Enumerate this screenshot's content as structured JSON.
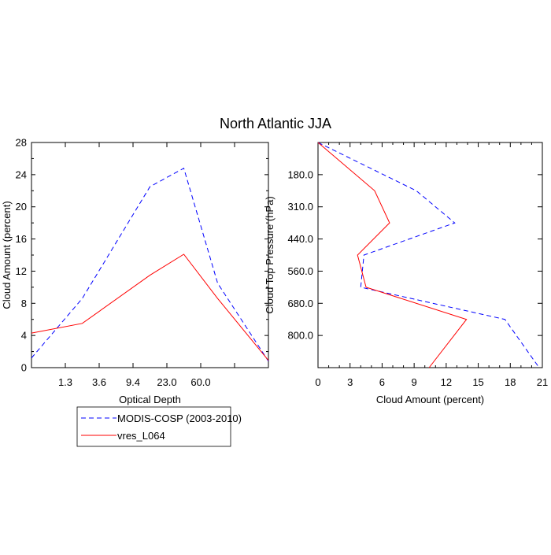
{
  "figure_title": "North Atlantic JJA",
  "legend": {
    "entries": [
      {
        "label": "MODIS-COSP (2003-2010)",
        "color": "#0000ff",
        "dash": "dashed"
      },
      {
        "label": "vres_L064",
        "color": "#ff0000",
        "dash": "solid"
      }
    ]
  },
  "chart_data": [
    {
      "type": "line",
      "title": "",
      "xlabel": "Optical Depth",
      "ylabel": "Cloud Amount (percent)",
      "x_tick_labels": [
        "1.3",
        "3.6",
        "9.4",
        "23.0",
        "60.0"
      ],
      "y_ticks": [
        0,
        4,
        8,
        12,
        16,
        20,
        24,
        28
      ],
      "ylim": [
        0,
        28
      ],
      "x_bins": 7,
      "series": [
        {
          "name": "MODIS-COSP (2003-2010)",
          "color": "#0000ff",
          "dash": "dashed",
          "values": [
            1.2,
            8.6,
            22.5,
            24.8,
            10.5,
            0.8
          ]
        },
        {
          "name": "vres_L064",
          "color": "#ff0000",
          "dash": "solid",
          "values": [
            4.3,
            5.5,
            11.5,
            14.1,
            8.6,
            0.9
          ]
        }
      ],
      "series_x": [
        [
          0.0,
          1.5,
          3.5,
          4.5,
          5.5,
          7.0
        ],
        [
          0.0,
          1.5,
          3.5,
          4.5,
          5.5,
          7.0
        ]
      ]
    },
    {
      "type": "line",
      "title": "",
      "xlabel": "Cloud Amount (percent)",
      "ylabel": "Cloud Top Pressure (hPa)",
      "x_ticks": [
        0,
        3,
        6,
        9,
        12,
        15,
        18,
        21
      ],
      "xlim": [
        0,
        21
      ],
      "y_tick_labels": [
        "180.0",
        "310.0",
        "440.0",
        "560.0",
        "680.0",
        "800.0"
      ],
      "y_bins": 7,
      "series": [
        {
          "name": "MODIS-COSP (2003-2010)",
          "color": "#0000ff",
          "dash": "dashed",
          "values": [
            0.0,
            9.2,
            12.8,
            4.3,
            4.0,
            17.5,
            20.7
          ]
        },
        {
          "name": "vres_L064",
          "color": "#ff0000",
          "dash": "solid",
          "values": [
            0.0,
            5.3,
            6.7,
            3.7,
            4.5,
            13.9,
            10.4
          ]
        }
      ],
      "series_y": [
        [
          0.0,
          1.5,
          2.5,
          3.5,
          4.5,
          5.5,
          7.0
        ],
        [
          0.0,
          1.5,
          2.5,
          3.5,
          4.5,
          5.5,
          7.0
        ]
      ]
    }
  ]
}
